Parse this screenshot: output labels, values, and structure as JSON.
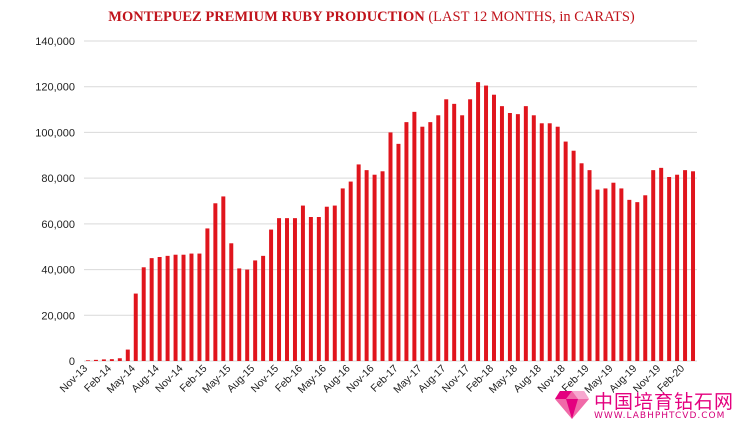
{
  "chart_data": {
    "type": "bar",
    "title": "MONTEPUEZ PREMIUM RUBY PRODUCTION",
    "subtitle": "(LAST 12 MONTHS, in CARATS)",
    "ylim": [
      0,
      140000
    ],
    "yticks": [
      "0",
      "20,000",
      "40,000",
      "60,000",
      "80,000",
      "100,000",
      "120,000",
      "140,000"
    ],
    "grid": true,
    "bar_color": "#e0151d",
    "title_color": "#c0131b",
    "xtick_labels": [
      "Nov-13",
      "Feb-14",
      "May-14",
      "Aug-14",
      "Nov-14",
      "Feb-15",
      "May-15",
      "Aug-15",
      "Nov-15",
      "Feb-16",
      "May-16",
      "Aug-16",
      "Nov-16",
      "Feb-17",
      "May-17",
      "Aug-17",
      "Nov-17",
      "Feb-18",
      "May-18",
      "Aug-18",
      "Nov-18",
      "Feb-19",
      "May-19",
      "Aug-19",
      "Nov-19",
      "Feb-20"
    ],
    "categories": [
      "Nov-13",
      "Dec-13",
      "Jan-14",
      "Feb-14",
      "Mar-14",
      "Apr-14",
      "May-14",
      "Jun-14",
      "Jul-14",
      "Aug-14",
      "Sep-14",
      "Oct-14",
      "Nov-14",
      "Dec-14",
      "Jan-15",
      "Feb-15",
      "Mar-15",
      "Apr-15",
      "May-15",
      "Jun-15",
      "Jul-15",
      "Aug-15",
      "Sep-15",
      "Oct-15",
      "Nov-15",
      "Dec-15",
      "Jan-16",
      "Feb-16",
      "Mar-16",
      "Apr-16",
      "May-16",
      "Jun-16",
      "Jul-16",
      "Aug-16",
      "Sep-16",
      "Oct-16",
      "Nov-16",
      "Dec-16",
      "Jan-17",
      "Feb-17",
      "Mar-17",
      "Apr-17",
      "May-17",
      "Jun-17",
      "Jul-17",
      "Aug-17",
      "Sep-17",
      "Oct-17",
      "Nov-17",
      "Dec-17",
      "Jan-18",
      "Feb-18",
      "Mar-18",
      "Apr-18",
      "May-18",
      "Jun-18",
      "Jul-18",
      "Aug-18",
      "Sep-18",
      "Oct-18",
      "Nov-18",
      "Dec-18",
      "Jan-19",
      "Feb-19",
      "Mar-19",
      "Apr-19",
      "May-19",
      "Jun-19",
      "Jul-19",
      "Aug-19",
      "Sep-19",
      "Oct-19",
      "Nov-19",
      "Dec-19",
      "Jan-20",
      "Feb-20",
      "Mar-20"
    ],
    "values": [
      300,
      500,
      700,
      800,
      1200,
      5000,
      29500,
      41000,
      45000,
      45500,
      46000,
      46500,
      46500,
      47000,
      47000,
      58000,
      69000,
      72000,
      51500,
      40500,
      40000,
      44000,
      46000,
      57500,
      62500,
      62500,
      62500,
      68000,
      63000,
      63000,
      67500,
      68000,
      75500,
      78500,
      86000,
      83500,
      81500,
      83000,
      100000,
      95000,
      104500,
      109000,
      102500,
      104500,
      107500,
      114500,
      112500,
      107500,
      114500,
      122000,
      120500,
      116500,
      111500,
      108500,
      108000,
      111500,
      107500,
      104000,
      104000,
      102500,
      96000,
      92000,
      86500,
      83500,
      75000,
      75500,
      78000,
      75500,
      70500,
      69500,
      72500,
      83500,
      84500,
      80500,
      81500,
      83500,
      83000
    ]
  },
  "watermark": {
    "text_cn": "中国培育钻石网",
    "url": "WWW.LABHPHTCVD.COM"
  }
}
